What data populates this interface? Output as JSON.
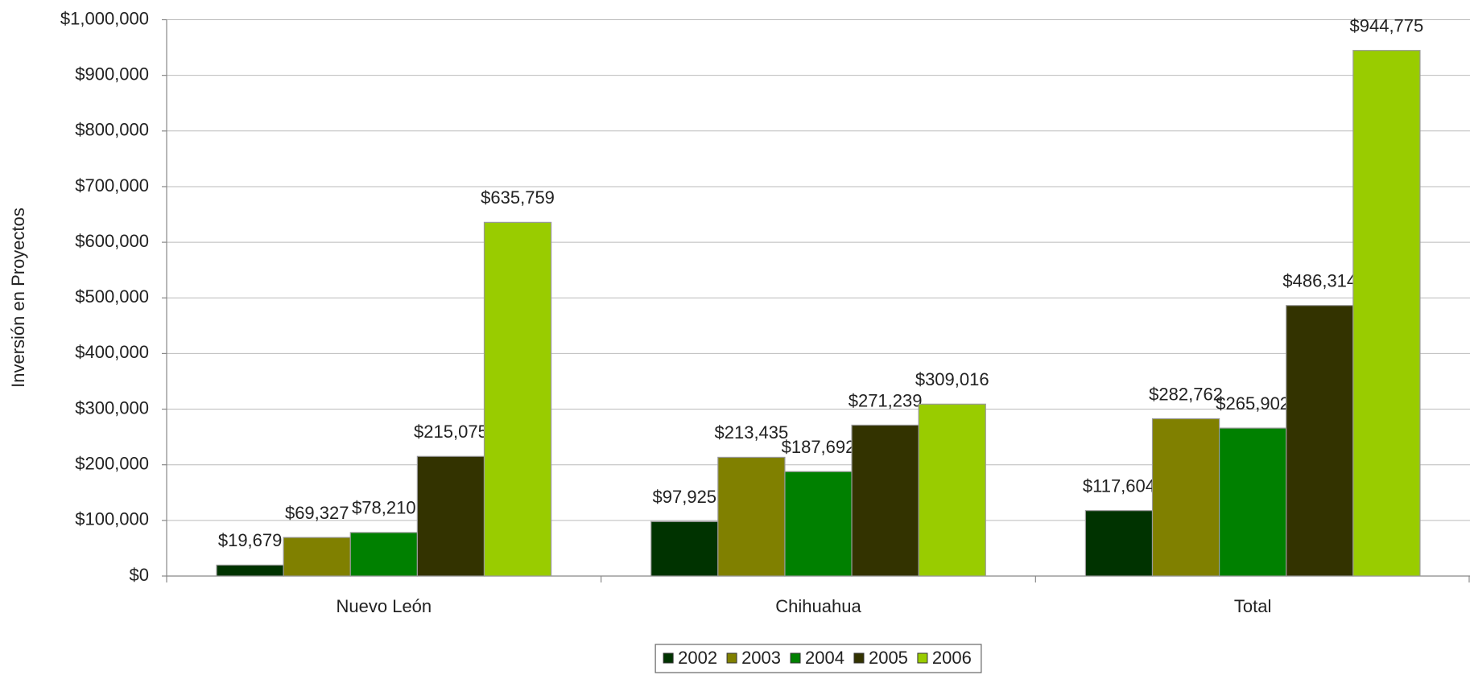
{
  "chart_data": {
    "type": "bar",
    "y_label": "Inversión en Proyectos",
    "categories": [
      "Nuevo León",
      "Chihuahua",
      "Total"
    ],
    "series": [
      {
        "name": "2002",
        "color": "#003300",
        "values": [
          19679,
          97925,
          117604
        ],
        "value_labels": [
          "$19,679",
          "$97,925",
          "$117,604"
        ]
      },
      {
        "name": "2003",
        "color": "#808000",
        "values": [
          69327,
          213435,
          282762
        ],
        "value_labels": [
          "$69,327",
          "$213,435",
          "$282,762"
        ]
      },
      {
        "name": "2004",
        "color": "#008000",
        "values": [
          78210,
          187692,
          265902
        ],
        "value_labels": [
          "$78,210",
          "$187,692",
          "$265,902"
        ]
      },
      {
        "name": "2005",
        "color": "#333300",
        "values": [
          215075,
          271239,
          486314
        ],
        "value_labels": [
          "$215,075",
          "$271,239",
          "$486,314"
        ]
      },
      {
        "name": "2006",
        "color": "#99cc00",
        "values": [
          635759,
          309016,
          944775
        ],
        "value_labels": [
          "$635,759",
          "$309,016",
          "$944,775"
        ]
      }
    ],
    "ylim": [
      0,
      1000000
    ],
    "yticks": [
      {
        "value": 0,
        "label": "$0"
      },
      {
        "value": 100000,
        "label": "$100,000"
      },
      {
        "value": 200000,
        "label": "$200,000"
      },
      {
        "value": 300000,
        "label": "$300,000"
      },
      {
        "value": 400000,
        "label": "$400,000"
      },
      {
        "value": 500000,
        "label": "$500,000"
      },
      {
        "value": 600000,
        "label": "$600,000"
      },
      {
        "value": 700000,
        "label": "$700,000"
      },
      {
        "value": 800000,
        "label": "$800,000"
      },
      {
        "value": 900000,
        "label": "$900,000"
      },
      {
        "value": 1000000,
        "label": "$1,000,000"
      }
    ],
    "grid": true,
    "legend": "bottom"
  }
}
